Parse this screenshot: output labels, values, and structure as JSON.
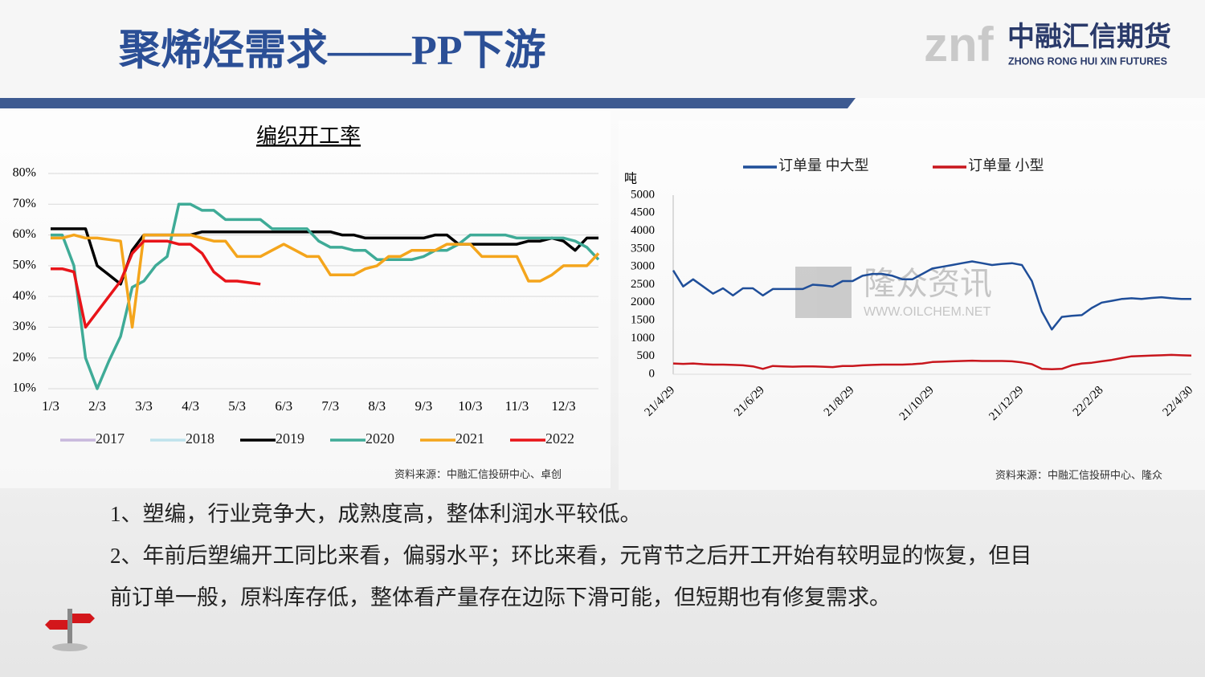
{
  "header": {
    "title": "聚烯烃需求——PP下游",
    "logo_mark": "znf",
    "logo_name": "中融汇信期货",
    "logo_english": "ZHONG RONG HUI XIN FUTURES"
  },
  "chart_data": [
    {
      "type": "line",
      "title": "编织开工率",
      "categories": [
        "1/3",
        null,
        null,
        null,
        "2/3",
        null,
        null,
        null,
        "3/3",
        null,
        null,
        null,
        "4/3",
        null,
        null,
        null,
        "5/3",
        null,
        null,
        null,
        "6/3",
        null,
        null,
        null,
        "7/3",
        null,
        null,
        null,
        "8/3",
        null,
        null,
        null,
        "9/3",
        null,
        null,
        null,
        "10/3",
        null,
        null,
        null,
        "11/3",
        null,
        null,
        null,
        "12/3",
        null,
        null,
        null
      ],
      "series": [
        {
          "name": "2017",
          "color": "#c8b8dc",
          "values": [
            null,
            null,
            null,
            null,
            null,
            null,
            null,
            null,
            null,
            null,
            null,
            null,
            null,
            null,
            null,
            null,
            null,
            null,
            null,
            null,
            null,
            null,
            null,
            null,
            null,
            null,
            null,
            null,
            null,
            null,
            null,
            null,
            null,
            null,
            null,
            null,
            null,
            null,
            null,
            null,
            null,
            null,
            null,
            null,
            null,
            null,
            null,
            null
          ]
        },
        {
          "name": "2018",
          "color": "#bfe2ec",
          "values": [
            null,
            null,
            null,
            null,
            null,
            null,
            null,
            null,
            null,
            null,
            null,
            null,
            null,
            null,
            null,
            null,
            null,
            null,
            null,
            null,
            null,
            null,
            null,
            null,
            null,
            null,
            null,
            null,
            null,
            null,
            null,
            null,
            null,
            null,
            null,
            null,
            null,
            null,
            null,
            null,
            null,
            null,
            null,
            null,
            null,
            null,
            null,
            null
          ]
        },
        {
          "name": "2019",
          "color": "#000000",
          "values": [
            62,
            62,
            62,
            62,
            50,
            47,
            44,
            55,
            60,
            60,
            60,
            60,
            60,
            61,
            61,
            61,
            61,
            61,
            61,
            61,
            61,
            61,
            61,
            61,
            61,
            60,
            60,
            59,
            59,
            59,
            59,
            59,
            59,
            60,
            60,
            57,
            57,
            57,
            57,
            57,
            57,
            58,
            58,
            59,
            58,
            55,
            59,
            59
          ]
        },
        {
          "name": "2020",
          "color": "#3fab97",
          "values": [
            60,
            60,
            50,
            20,
            10,
            19,
            27,
            43,
            45,
            50,
            53,
            70,
            70,
            68,
            68,
            65,
            65,
            65,
            65,
            62,
            62,
            62,
            62,
            58,
            56,
            56,
            55,
            55,
            52,
            52,
            52,
            52,
            53,
            55,
            55,
            57,
            60,
            60,
            60,
            60,
            59,
            59,
            59,
            59,
            59,
            58,
            56,
            52
          ]
        },
        {
          "name": "2021",
          "color": "#f4a51c",
          "values": [
            59,
            59,
            60,
            59,
            59,
            58.5,
            58,
            30,
            60,
            60,
            60,
            60,
            60,
            59,
            58,
            58,
            53,
            53,
            53,
            55,
            57,
            55,
            53,
            53,
            47,
            47,
            47,
            49,
            50,
            53,
            53,
            55,
            55,
            55,
            57,
            57,
            57,
            53,
            53,
            53,
            53,
            45,
            45,
            47,
            50,
            50,
            50,
            54
          ]
        },
        {
          "name": "2022",
          "color": "#e81419",
          "values": [
            49,
            49,
            48,
            30,
            35,
            40,
            45,
            54,
            58,
            58,
            58,
            57,
            57,
            54,
            48,
            45,
            45,
            44.5,
            44,
            null,
            null,
            null,
            null,
            null,
            null,
            null,
            null,
            null,
            null,
            null,
            null,
            null,
            null,
            null,
            null,
            null,
            null,
            null,
            null,
            null,
            null,
            null,
            null,
            null,
            null,
            null,
            null,
            null
          ]
        }
      ],
      "ylim": [
        10,
        80
      ],
      "yticks": [
        {
          "value": 10,
          "label": "10%"
        },
        {
          "value": 20,
          "label": "20%"
        },
        {
          "value": 30,
          "label": "30%"
        },
        {
          "value": 40,
          "label": "40%"
        },
        {
          "value": 50,
          "label": "50%"
        },
        {
          "value": 60,
          "label": "60%"
        },
        {
          "value": 70,
          "label": "70%"
        },
        {
          "value": 80,
          "label": "80%"
        }
      ],
      "grid": true,
      "legend": "bottom",
      "source": "资料来源：中融汇信投研中心、卓创"
    },
    {
      "type": "line",
      "y_unit": "吨",
      "categories": [
        "21/4/29",
        null,
        null,
        null,
        null,
        null,
        null,
        null,
        null,
        "21/6/29",
        null,
        null,
        null,
        null,
        null,
        null,
        null,
        null,
        "21/8/29",
        null,
        null,
        null,
        null,
        null,
        null,
        null,
        "21/10/29",
        null,
        null,
        null,
        null,
        null,
        null,
        null,
        null,
        "21/12/29",
        null,
        null,
        null,
        null,
        null,
        null,
        null,
        "22/2/28",
        null,
        null,
        null,
        null,
        null,
        null,
        null,
        null,
        "22/4/30"
      ],
      "series": [
        {
          "name": "订单量 中大型",
          "color": "#1f4e99",
          "values": [
            2900,
            2450,
            2650,
            2450,
            2250,
            2400,
            2200,
            2400,
            2400,
            2200,
            2380,
            2380,
            2380,
            2380,
            2500,
            2480,
            2450,
            2600,
            2600,
            2750,
            2800,
            2800,
            2750,
            2650,
            2650,
            2800,
            2950,
            3000,
            3050,
            3100,
            3150,
            3100,
            3050,
            3080,
            3100,
            3050,
            2600,
            1750,
            1250,
            1600,
            1630,
            1650,
            1850,
            2000,
            2050,
            2100,
            2120,
            2100,
            2130,
            2150,
            2120,
            2100,
            2100
          ]
        },
        {
          "name": "订单量 小型",
          "color": "#c8161d",
          "values": [
            300,
            290,
            300,
            280,
            270,
            270,
            260,
            250,
            220,
            150,
            230,
            220,
            210,
            220,
            220,
            210,
            200,
            230,
            230,
            250,
            260,
            270,
            270,
            270,
            280,
            300,
            340,
            350,
            360,
            370,
            380,
            370,
            370,
            370,
            360,
            330,
            280,
            150,
            140,
            150,
            250,
            300,
            320,
            360,
            400,
            450,
            500,
            510,
            520,
            530,
            540,
            530,
            520
          ]
        }
      ],
      "ylim": [
        0,
        5000
      ],
      "yticks": [
        0,
        500,
        1000,
        1500,
        2000,
        2500,
        3000,
        3500,
        4000,
        4500,
        5000
      ],
      "grid": false,
      "legend": "top",
      "watermark": "隆众资讯",
      "watermark_url": "WWW.OILCHEM.NET",
      "source": "资料来源：中融汇信投研中心、隆众"
    }
  ],
  "body": {
    "lines": [
      "1、塑编，行业竞争大，成熟度高，整体利润水平较低。",
      "2、年前后塑编开工同比来看，偏弱水平；环比来看，元宵节之后开工开始有较明显的恢复，但目",
      "前订单一般，原料库存低，整体看产量存在边际下滑可能，但短期也有修复需求。"
    ]
  }
}
